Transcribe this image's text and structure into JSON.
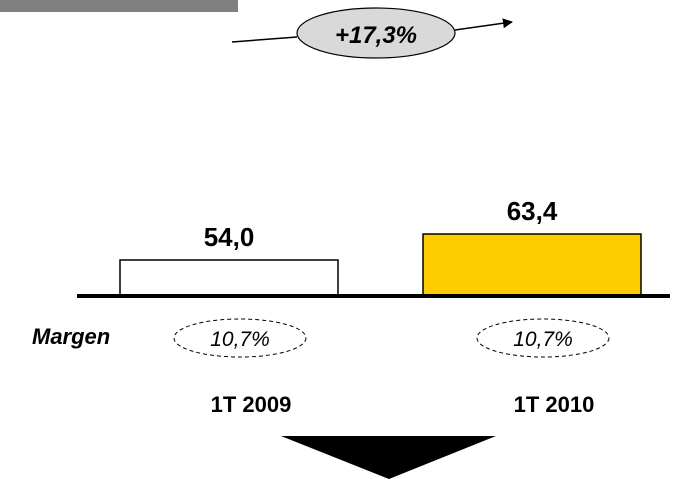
{
  "header": {
    "growth_label": "+17,3%"
  },
  "margin": {
    "label": "Margen"
  },
  "chart_data": {
    "type": "bar",
    "categories": [
      "1T 2009",
      "1T 2010"
    ],
    "values": [
      54.0,
      63.4
    ],
    "value_labels": [
      "54,0",
      "63,4"
    ],
    "margins": [
      "10,7%",
      "10,7%"
    ],
    "colors": [
      "#ffffff",
      "#ffcc00"
    ],
    "title": "",
    "xlabel": "",
    "ylabel": "",
    "grid": false
  },
  "colors": {
    "bar_2010": "#ffcc00",
    "bar_2009": "#ffffff",
    "growth_bubble": "#d9d9d9",
    "axis": "#000000",
    "outline": "#000000"
  }
}
